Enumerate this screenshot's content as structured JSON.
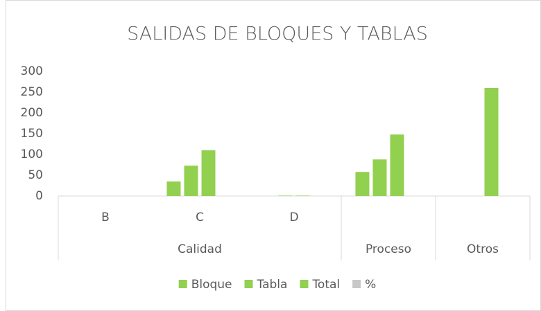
{
  "chart_data": {
    "type": "bar",
    "title": "SALIDAS DE BLOQUES Y TABLAS",
    "groups": [
      {
        "label": "Calidad",
        "categories": [
          "B",
          "C",
          "D"
        ]
      },
      {
        "label": "Proceso",
        "categories": [
          null
        ]
      },
      {
        "label": "Otros",
        "categories": [
          null
        ]
      }
    ],
    "series": [
      {
        "name": "Bloque",
        "color": "#92d050",
        "values": [
          0,
          35,
          0,
          58,
          0
        ]
      },
      {
        "name": "Tabla",
        "color": "#92d050",
        "values": [
          0,
          73,
          1,
          88,
          0
        ]
      },
      {
        "name": "Total",
        "color": "#92d050",
        "values": [
          0,
          110,
          1,
          148,
          260
        ]
      },
      {
        "name": "%",
        "color": "#c8c8c8",
        "values": [
          0,
          0,
          0,
          0,
          0
        ]
      }
    ],
    "ylim": [
      0,
      300
    ],
    "yticks": [
      0,
      50,
      100,
      150,
      200,
      250,
      300
    ],
    "grid": false,
    "legend": "bottom"
  }
}
